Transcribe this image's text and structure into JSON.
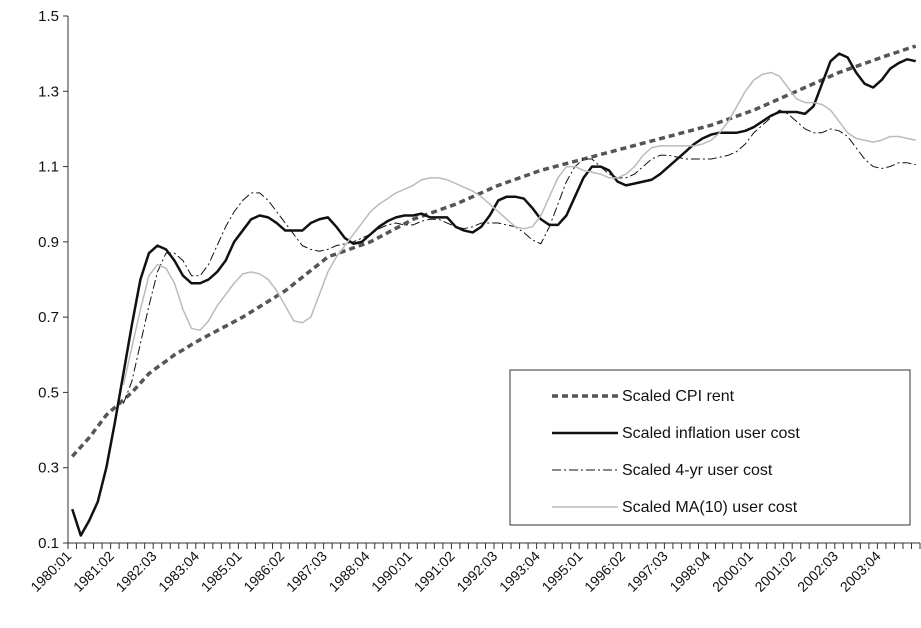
{
  "chart_data": {
    "type": "line",
    "categories": [
      "1980:01",
      null,
      null,
      null,
      null,
      "1981:02",
      null,
      null,
      null,
      null,
      "1982:03",
      null,
      null,
      null,
      null,
      "1983:04",
      null,
      null,
      null,
      null,
      "1985:01",
      null,
      null,
      null,
      null,
      "1986:02",
      null,
      null,
      null,
      null,
      "1987:03",
      null,
      null,
      null,
      null,
      "1988:04",
      null,
      null,
      null,
      null,
      "1990:01",
      null,
      null,
      null,
      null,
      "1991:02",
      null,
      null,
      null,
      null,
      "1992:03",
      null,
      null,
      null,
      null,
      "1993:04",
      null,
      null,
      null,
      null,
      "1995:01",
      null,
      null,
      null,
      null,
      "1996:02",
      null,
      null,
      null,
      null,
      "1997:03",
      null,
      null,
      null,
      null,
      "1998:04",
      null,
      null,
      null,
      null,
      "2000:01",
      null,
      null,
      null,
      null,
      "2001:02",
      null,
      null,
      null,
      null,
      "2002:03",
      null,
      null,
      null,
      null,
      "2003:04",
      null,
      null,
      null,
      null
    ],
    "ylim": [
      0.1,
      1.5
    ],
    "yticks": [
      0.1,
      0.3,
      0.5,
      0.7,
      0.9,
      1.1,
      1.3,
      1.5
    ],
    "legend": "lower right",
    "series": [
      {
        "name": "Scaled CPI rent",
        "color": "#555555",
        "style": "dashed",
        "values": [
          0.33,
          0.355,
          0.38,
          0.41,
          0.44,
          0.46,
          0.48,
          0.5,
          0.525,
          0.55,
          0.567,
          0.583,
          0.6,
          0.613,
          0.627,
          0.64,
          0.652,
          0.664,
          0.676,
          0.688,
          0.7,
          0.714,
          0.728,
          0.742,
          0.756,
          0.77,
          0.788,
          0.806,
          0.824,
          0.842,
          0.86,
          0.868,
          0.876,
          0.884,
          0.892,
          0.9,
          0.912,
          0.924,
          0.936,
          0.948,
          0.96,
          0.968,
          0.976,
          0.984,
          0.992,
          1.0,
          1.01,
          1.02,
          1.03,
          1.04,
          1.05,
          1.058,
          1.066,
          1.074,
          1.082,
          1.09,
          1.096,
          1.102,
          1.108,
          1.114,
          1.12,
          1.126,
          1.132,
          1.138,
          1.144,
          1.15,
          1.156,
          1.162,
          1.168,
          1.174,
          1.18,
          1.186,
          1.192,
          1.198,
          1.204,
          1.21,
          1.218,
          1.226,
          1.234,
          1.242,
          1.25,
          1.26,
          1.27,
          1.28,
          1.29,
          1.3,
          1.31,
          1.32,
          1.33,
          1.34,
          1.35,
          1.358,
          1.366,
          1.374,
          1.382,
          1.39,
          1.398,
          1.405,
          1.413,
          1.42
        ]
      },
      {
        "name": "Scaled inflation user cost",
        "color": "#111111",
        "style": "solid",
        "values": [
          0.19,
          0.12,
          0.16,
          0.21,
          0.3,
          0.42,
          0.55,
          0.68,
          0.8,
          0.87,
          0.89,
          0.88,
          0.85,
          0.81,
          0.79,
          0.79,
          0.8,
          0.82,
          0.85,
          0.9,
          0.93,
          0.96,
          0.97,
          0.965,
          0.95,
          0.93,
          0.93,
          0.93,
          0.95,
          0.96,
          0.965,
          0.94,
          0.91,
          0.895,
          0.9,
          0.92,
          0.94,
          0.955,
          0.965,
          0.97,
          0.97,
          0.975,
          0.965,
          0.965,
          0.965,
          0.94,
          0.93,
          0.925,
          0.94,
          0.97,
          1.01,
          1.02,
          1.02,
          1.015,
          0.99,
          0.96,
          0.945,
          0.945,
          0.97,
          1.02,
          1.07,
          1.1,
          1.1,
          1.09,
          1.06,
          1.05,
          1.055,
          1.06,
          1.065,
          1.08,
          1.1,
          1.12,
          1.14,
          1.16,
          1.175,
          1.185,
          1.19,
          1.19,
          1.19,
          1.195,
          1.205,
          1.22,
          1.235,
          1.245,
          1.245,
          1.245,
          1.24,
          1.26,
          1.32,
          1.38,
          1.4,
          1.39,
          1.35,
          1.32,
          1.31,
          1.33,
          1.36,
          1.375,
          1.385,
          1.38
        ]
      },
      {
        "name": "Scaled 4-yr user cost",
        "color": "#111111",
        "style": "dashdot",
        "values": [
          null,
          null,
          null,
          null,
          null,
          null,
          0.47,
          0.53,
          0.63,
          0.73,
          0.82,
          0.87,
          0.87,
          0.85,
          0.81,
          0.81,
          0.84,
          0.89,
          0.94,
          0.98,
          1.01,
          1.03,
          1.03,
          1.01,
          0.98,
          0.95,
          0.92,
          0.89,
          0.88,
          0.875,
          0.88,
          0.89,
          0.895,
          0.9,
          0.91,
          0.92,
          0.935,
          0.945,
          0.95,
          0.945,
          0.945,
          0.955,
          0.96,
          0.96,
          0.95,
          0.94,
          0.935,
          0.94,
          0.95,
          0.95,
          0.95,
          0.945,
          0.94,
          0.925,
          0.905,
          0.895,
          0.94,
          1.0,
          1.06,
          1.1,
          1.12,
          1.12,
          1.1,
          1.08,
          1.07,
          1.07,
          1.08,
          1.1,
          1.12,
          1.13,
          1.13,
          1.125,
          1.12,
          1.12,
          1.12,
          1.12,
          1.125,
          1.13,
          1.14,
          1.16,
          1.19,
          1.21,
          1.23,
          1.25,
          1.24,
          1.22,
          1.2,
          1.19,
          1.19,
          1.2,
          1.195,
          1.18,
          1.15,
          1.12,
          1.1,
          1.095,
          1.1,
          1.11,
          1.11,
          1.105
        ]
      },
      {
        "name": "Scaled MA(10) user cost",
        "color": "#bbbbbb",
        "style": "solid",
        "values": [
          null,
          null,
          null,
          null,
          null,
          null,
          0.52,
          0.62,
          0.72,
          0.81,
          0.84,
          0.83,
          0.79,
          0.72,
          0.67,
          0.665,
          0.69,
          0.73,
          0.76,
          0.79,
          0.815,
          0.82,
          0.815,
          0.8,
          0.77,
          0.73,
          0.69,
          0.685,
          0.7,
          0.76,
          0.82,
          0.86,
          0.89,
          0.92,
          0.95,
          0.98,
          1.0,
          1.015,
          1.03,
          1.04,
          1.05,
          1.065,
          1.07,
          1.07,
          1.065,
          1.055,
          1.045,
          1.035,
          1.02,
          1.0,
          0.98,
          0.96,
          0.94,
          0.935,
          0.94,
          0.97,
          1.02,
          1.07,
          1.1,
          1.1,
          1.09,
          1.085,
          1.08,
          1.07,
          1.07,
          1.08,
          1.1,
          1.13,
          1.15,
          1.155,
          1.155,
          1.155,
          1.155,
          1.155,
          1.16,
          1.17,
          1.19,
          1.22,
          1.26,
          1.3,
          1.33,
          1.345,
          1.35,
          1.34,
          1.31,
          1.28,
          1.27,
          1.27,
          1.265,
          1.25,
          1.22,
          1.19,
          1.175,
          1.17,
          1.165,
          1.17,
          1.18,
          1.18,
          1.175,
          1.17
        ]
      }
    ]
  }
}
